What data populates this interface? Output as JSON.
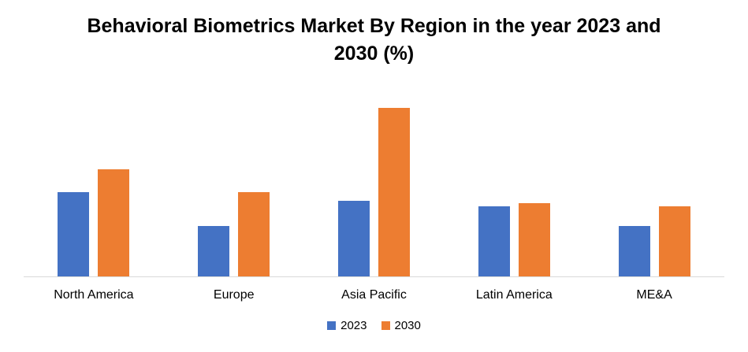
{
  "title": "Behavioral Biometrics Market By Region in the year 2023 and 2030 (%)",
  "colors": {
    "series_2023": "#4472C4",
    "series_2030": "#ED7D31",
    "axis_line": "#D9D9D9",
    "background": "#FFFFFF",
    "text": "#000000"
  },
  "chart_data": {
    "type": "bar",
    "title": "Behavioral Biometrics Market By Region in the year 2023 and 2030 (%)",
    "categories": [
      "North America",
      "Europe",
      "Asia Pacific",
      "Latin America",
      "ME&A"
    ],
    "series": [
      {
        "name": "2023",
        "color": "#4472C4",
        "values": [
          15,
          9,
          13.5,
          12.5,
          9
        ]
      },
      {
        "name": "2030",
        "color": "#ED7D31",
        "values": [
          19,
          15,
          30,
          13,
          12.5
        ]
      }
    ],
    "xlabel": "",
    "ylabel": "",
    "ylim": [
      0,
      30
    ],
    "grid": false,
    "y_axis_visible": false,
    "legend_position": "bottom"
  },
  "legend": {
    "items": [
      {
        "label": "2023",
        "color": "#4472C4"
      },
      {
        "label": "2030",
        "color": "#ED7D31"
      }
    ]
  }
}
